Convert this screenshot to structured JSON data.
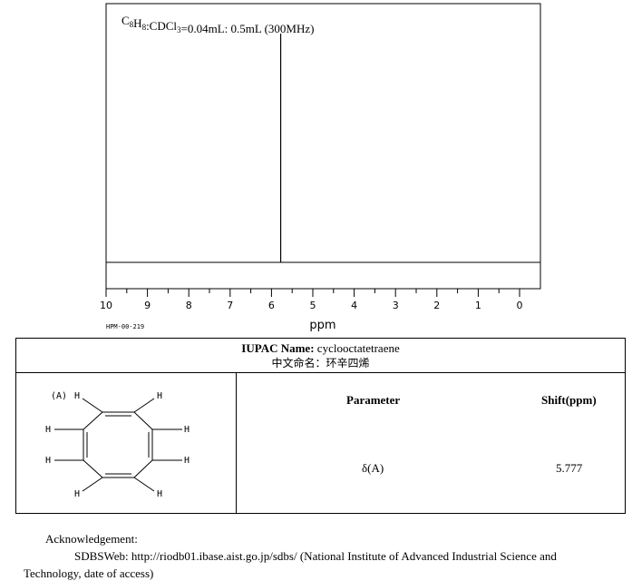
{
  "chart_data": {
    "type": "line",
    "title": "",
    "condition_text": {
      "formula_parts": [
        {
          "t": "C",
          "sub": false
        },
        {
          "t": "8",
          "sub": true
        },
        {
          "t": "H",
          "sub": false
        },
        {
          "t": "8",
          "sub": true
        },
        {
          "t": ":CDCl",
          "sub": false
        },
        {
          "t": "3",
          "sub": true
        },
        {
          "t": "=0.04mL: 0.5mL (300MHz)",
          "sub": false
        }
      ]
    },
    "xlabel": "ppm",
    "xlim": [
      10,
      0
    ],
    "x_reversed": true,
    "ticks": [
      "10",
      "9",
      "8",
      "7",
      "6",
      "5",
      "4",
      "3",
      "2",
      "1",
      "0"
    ],
    "tick_values": [
      10,
      9,
      8,
      7,
      6,
      5,
      4,
      3,
      2,
      1,
      0
    ],
    "peaks": [
      {
        "shift": 5.777,
        "relative_intensity": 1.0
      }
    ],
    "code": "HPM-00-219",
    "grid": false,
    "legend": "none",
    "colors": {
      "line": "#000000",
      "background": "#ffffff"
    }
  },
  "compound": {
    "iupac_label": "IUPAC Name:",
    "iupac_name": "cyclooctatetraene",
    "cn_label": "中文命名：",
    "cn_name": "环辛四烯"
  },
  "structure": {
    "label_a": "(A)",
    "h": "H"
  },
  "table": {
    "param_header": "Parameter",
    "shift_header": "Shift(ppm)",
    "rows": [
      {
        "param": "δ(A)",
        "shift": "5.777"
      }
    ]
  },
  "ack": {
    "title": "Acknowledgement:",
    "line1": "SDBSWeb: http://riodb01.ibase.aist.go.jp/sdbs/ (National Institute of Advanced Industrial Science and",
    "line2": "Technology, date of access)"
  }
}
